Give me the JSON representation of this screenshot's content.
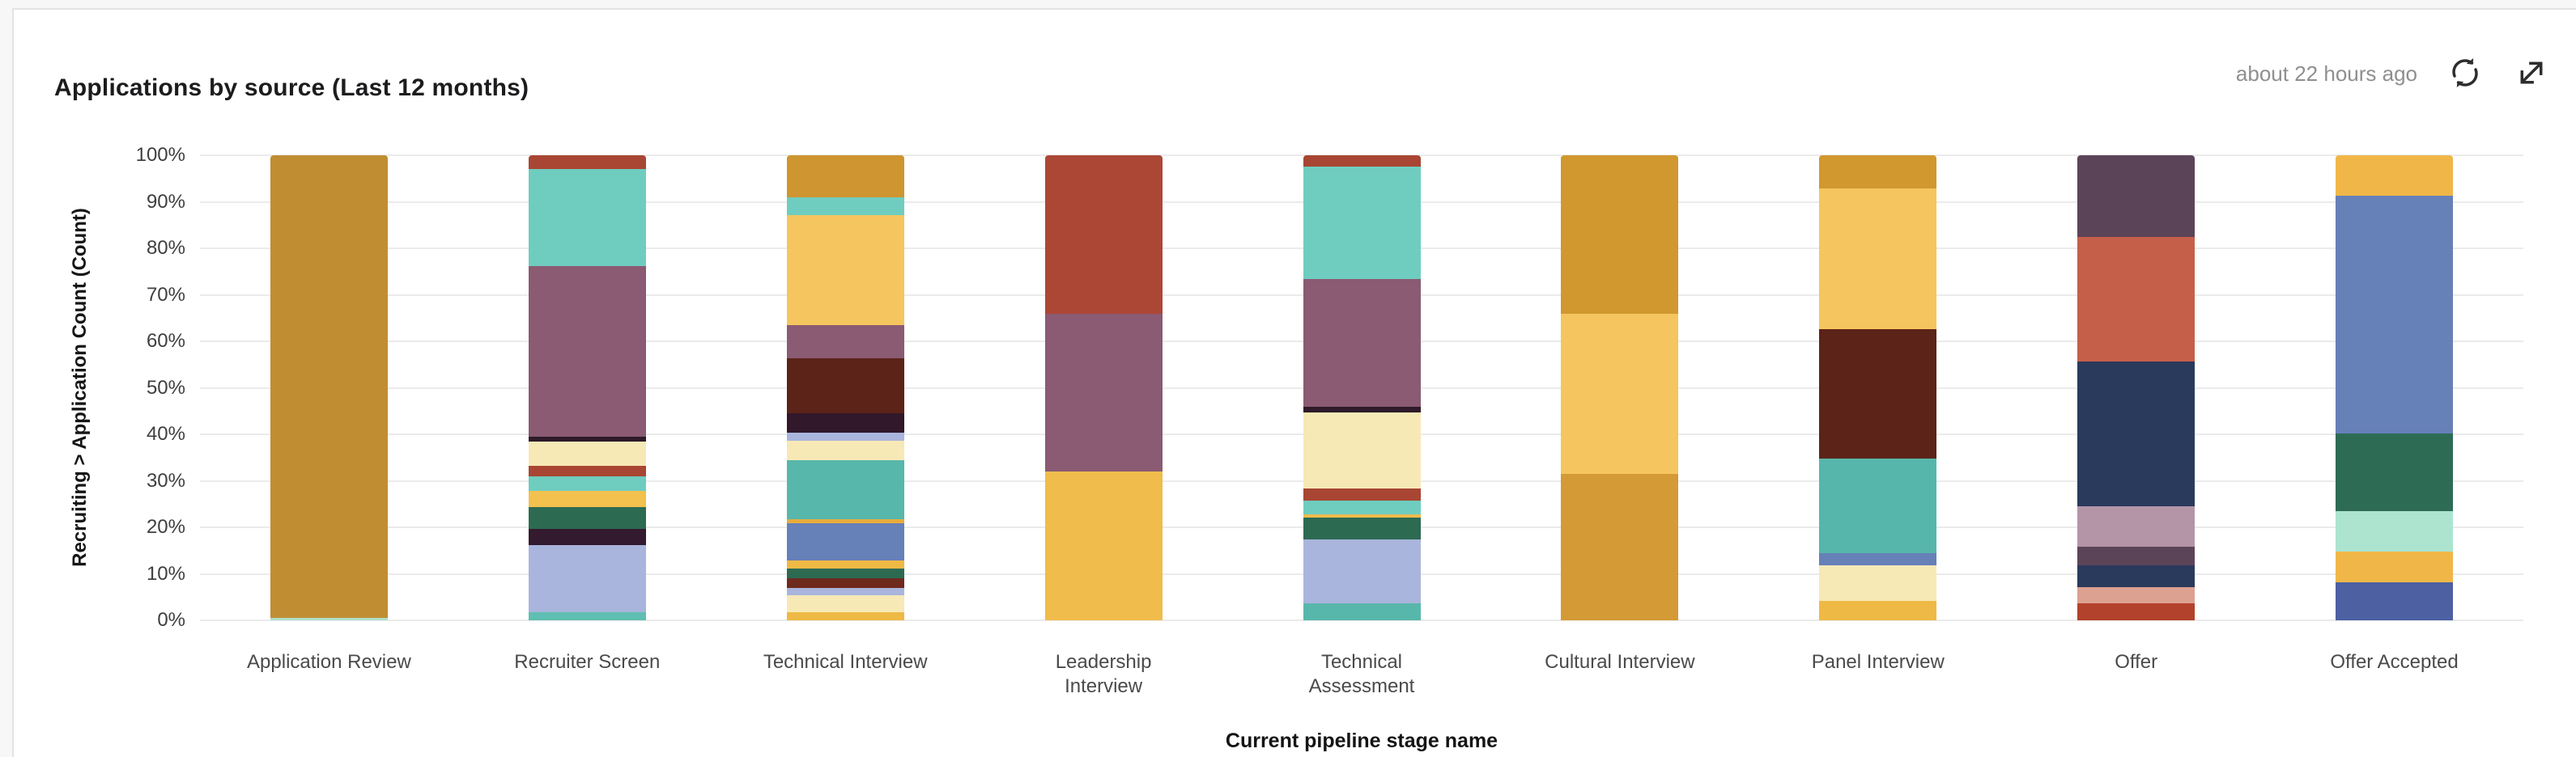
{
  "card": {
    "title": "Applications by source (Last 12 months)",
    "last_updated": "about 22 hours ago",
    "icons": {
      "refresh": "refresh-icon",
      "expand": "expand-icon"
    }
  },
  "chart_data": {
    "type": "bar",
    "stacked": true,
    "unit": "percent",
    "title": "Applications by source (Last 12 months)",
    "xlabel": "Current pipeline stage name",
    "ylabel": "Recruiting > Application Count (Count)",
    "ylim": [
      0,
      100
    ],
    "grid": true,
    "legend": "none",
    "y_tick_labels": [
      "100%",
      "90%",
      "80%",
      "70%",
      "60%",
      "50%",
      "40%",
      "30%",
      "20%",
      "10%",
      "0%"
    ],
    "categories": [
      "Application Review",
      "Recruiter Screen",
      "Technical Interview",
      "Leadership Interview",
      "Technical Assessment",
      "Cultural Interview",
      "Panel Interview",
      "Offer",
      "Offer Accepted"
    ],
    "note": "Each bar stacks to 100%; segments listed top-to-bottom with color and percent height as rendered (legend not visible in screenshot).",
    "bars": [
      {
        "category": "Application Review",
        "label_lines": [
          "Application Review"
        ],
        "segments": [
          {
            "color": "#C18D33",
            "value": 99.4
          },
          {
            "color": "#AEDFC9",
            "value": 0.6
          }
        ]
      },
      {
        "category": "Recruiter Screen",
        "label_lines": [
          "Recruiter Screen"
        ],
        "segments": [
          {
            "color": "#A84633",
            "value": 3.0
          },
          {
            "color": "#6FCDBF",
            "value": 20.8
          },
          {
            "color": "#8A5B72",
            "value": 36.7
          },
          {
            "color": "#2E1A28",
            "value": 1.0
          },
          {
            "color": "#F7E9B6",
            "value": 5.2
          },
          {
            "color": "#A84633",
            "value": 2.4
          },
          {
            "color": "#6FCDBF",
            "value": 3.1
          },
          {
            "color": "#F2C14E",
            "value": 3.4
          },
          {
            "color": "#2C6A52",
            "value": 4.8
          },
          {
            "color": "#331A2F",
            "value": 3.4
          },
          {
            "color": "#A9B5DC",
            "value": 14.4
          },
          {
            "color": "#5FBFB2",
            "value": 1.8
          }
        ]
      },
      {
        "category": "Technical Interview",
        "label_lines": [
          "Technical Interview"
        ],
        "segments": [
          {
            "color": "#CE9530",
            "value": 9.1
          },
          {
            "color": "#6FCDBF",
            "value": 3.7
          },
          {
            "color": "#F5C55F",
            "value": 23.8
          },
          {
            "color": "#8A5B72",
            "value": 7.0
          },
          {
            "color": "#5C2318",
            "value": 11.8
          },
          {
            "color": "#31182B",
            "value": 4.3
          },
          {
            "color": "#A9B5DC",
            "value": 1.7
          },
          {
            "color": "#F7E9B6",
            "value": 4.1
          },
          {
            "color": "#58B7AB",
            "value": 12.7
          },
          {
            "color": "#E8AC3C",
            "value": 1.0
          },
          {
            "color": "#6680B8",
            "value": 7.9
          },
          {
            "color": "#EFB945",
            "value": 1.7
          },
          {
            "color": "#2C6A52",
            "value": 2.2
          },
          {
            "color": "#6F2A1E",
            "value": 2.1
          },
          {
            "color": "#A9B5DC",
            "value": 1.6
          },
          {
            "color": "#F7E9B6",
            "value": 3.6
          },
          {
            "color": "#EFB945",
            "value": 1.7
          }
        ]
      },
      {
        "category": "Leadership Interview",
        "label_lines": [
          "Leadership",
          "Interview"
        ],
        "segments": [
          {
            "color": "#AC4736",
            "value": 34.0
          },
          {
            "color": "#8A5B72",
            "value": 34.0
          },
          {
            "color": "#F0BC4C",
            "value": 32.0
          }
        ]
      },
      {
        "category": "Technical Assessment",
        "label_lines": [
          "Technical",
          "Assessment"
        ],
        "segments": [
          {
            "color": "#A84633",
            "value": 2.4
          },
          {
            "color": "#6FCDBF",
            "value": 24.2
          },
          {
            "color": "#8A5B72",
            "value": 27.5
          },
          {
            "color": "#2E1A28",
            "value": 1.2
          },
          {
            "color": "#F7E9B6",
            "value": 16.4
          },
          {
            "color": "#A84633",
            "value": 2.5
          },
          {
            "color": "#6FCDBF",
            "value": 3.0
          },
          {
            "color": "#F0BC4C",
            "value": 0.8
          },
          {
            "color": "#2C6A52",
            "value": 4.7
          },
          {
            "color": "#A9B5DC",
            "value": 13.7
          },
          {
            "color": "#58B7AB",
            "value": 3.6
          }
        ]
      },
      {
        "category": "Cultural Interview",
        "label_lines": [
          "Cultural Interview"
        ],
        "segments": [
          {
            "color": "#D0982F",
            "value": 34.0
          },
          {
            "color": "#F5C55F",
            "value": 34.5
          },
          {
            "color": "#D49A36",
            "value": 31.5
          }
        ]
      },
      {
        "category": "Panel Interview",
        "label_lines": [
          "Panel Interview"
        ],
        "segments": [
          {
            "color": "#D0982F",
            "value": 7.2
          },
          {
            "color": "#F5C55F",
            "value": 30.2
          },
          {
            "color": "#5C2318",
            "value": 27.8
          },
          {
            "color": "#57B6AC",
            "value": 20.3
          },
          {
            "color": "#6680B8",
            "value": 2.7
          },
          {
            "color": "#F7E9B6",
            "value": 7.6
          },
          {
            "color": "#EFB945",
            "value": 4.2
          }
        ]
      },
      {
        "category": "Offer",
        "label_lines": [
          "Offer"
        ],
        "segments": [
          {
            "color": "#5C4458",
            "value": 17.5
          },
          {
            "color": "#C65F4A",
            "value": 26.9
          },
          {
            "color": "#2A3A5C",
            "value": 31.1
          },
          {
            "color": "#B495A8",
            "value": 8.7
          },
          {
            "color": "#5C4458",
            "value": 4.0
          },
          {
            "color": "#2A3A5C",
            "value": 4.7
          },
          {
            "color": "#DDA191",
            "value": 3.4
          },
          {
            "color": "#B2422B",
            "value": 3.7
          }
        ]
      },
      {
        "category": "Offer Accepted",
        "label_lines": [
          "Offer Accepted"
        ],
        "segments": [
          {
            "color": "#F0B748",
            "value": 8.7
          },
          {
            "color": "#6680B8",
            "value": 51.1
          },
          {
            "color": "#2E6B55",
            "value": 16.8
          },
          {
            "color": "#ACE4CF",
            "value": 8.6
          },
          {
            "color": "#F0B748",
            "value": 6.7
          },
          {
            "color": "#4C60A2",
            "value": 8.1
          }
        ]
      }
    ]
  }
}
